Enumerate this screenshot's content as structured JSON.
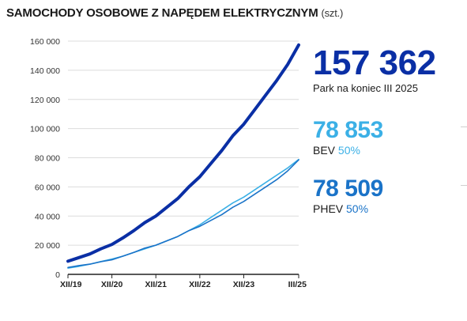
{
  "title": "SAMOCHODY OSOBOWE Z NAPĘDEM ELEKTRYCZNYM",
  "title_unit": "(szt.)",
  "kpi": {
    "total": {
      "value": "157 362",
      "caption": "Park na koniec III 2025",
      "color": "#0a2fa5"
    },
    "bev": {
      "value": "78 853",
      "label": "BEV",
      "share": "50%",
      "color": "#3bb0e6"
    },
    "phev": {
      "value": "78 509",
      "label": "PHEV",
      "share": "50%",
      "color": "#1a73c8"
    }
  },
  "chart_data": {
    "type": "line",
    "ylim": [
      0,
      160000
    ],
    "yticks": [
      0,
      20000,
      40000,
      60000,
      80000,
      100000,
      120000,
      140000,
      160000
    ],
    "ytick_labels": [
      "0",
      "20 000",
      "40 000",
      "60 000",
      "80 000",
      "100 000",
      "120 000",
      "140 000",
      "160 000"
    ],
    "xlim": [
      "2019-12",
      "2025-03"
    ],
    "xticks": [
      "2019-12",
      "2020-12",
      "2021-12",
      "2022-12",
      "2023-12",
      "2025-03"
    ],
    "xtick_labels": [
      "XII/19",
      "XII/20",
      "XII/21",
      "XII/22",
      "XII/23",
      "III/25"
    ],
    "grid": true,
    "x": [
      "2019-12",
      "2020-03",
      "2020-06",
      "2020-09",
      "2020-12",
      "2021-03",
      "2021-06",
      "2021-09",
      "2021-12",
      "2022-03",
      "2022-06",
      "2022-09",
      "2022-12",
      "2023-03",
      "2023-06",
      "2023-09",
      "2023-12",
      "2024-03",
      "2024-06",
      "2024-09",
      "2024-12",
      "2025-03"
    ],
    "series": [
      {
        "name": "Park",
        "color": "#0a2fa5",
        "width": 4,
        "values": [
          9000,
          11500,
          14000,
          17500,
          20500,
          25000,
          30000,
          35500,
          40000,
          46000,
          52000,
          60000,
          67000,
          76000,
          85000,
          95000,
          103000,
          113000,
          123000,
          133000,
          144000,
          157362
        ]
      },
      {
        "name": "BEV",
        "color": "#3bb0e6",
        "width": 1.6,
        "values": [
          4300,
          5500,
          7000,
          8800,
          10500,
          12500,
          15000,
          17500,
          20000,
          23000,
          26000,
          30000,
          34000,
          39000,
          44000,
          49000,
          53000,
          58000,
          63000,
          68000,
          73000,
          78853
        ]
      },
      {
        "name": "PHEV",
        "color": "#1a73c8",
        "width": 1.6,
        "values": [
          4700,
          6000,
          7000,
          8700,
          10000,
          12500,
          15000,
          18000,
          20000,
          23000,
          26000,
          30000,
          33000,
          37000,
          41000,
          46000,
          50000,
          55000,
          60000,
          65000,
          71000,
          78509
        ]
      }
    ]
  }
}
